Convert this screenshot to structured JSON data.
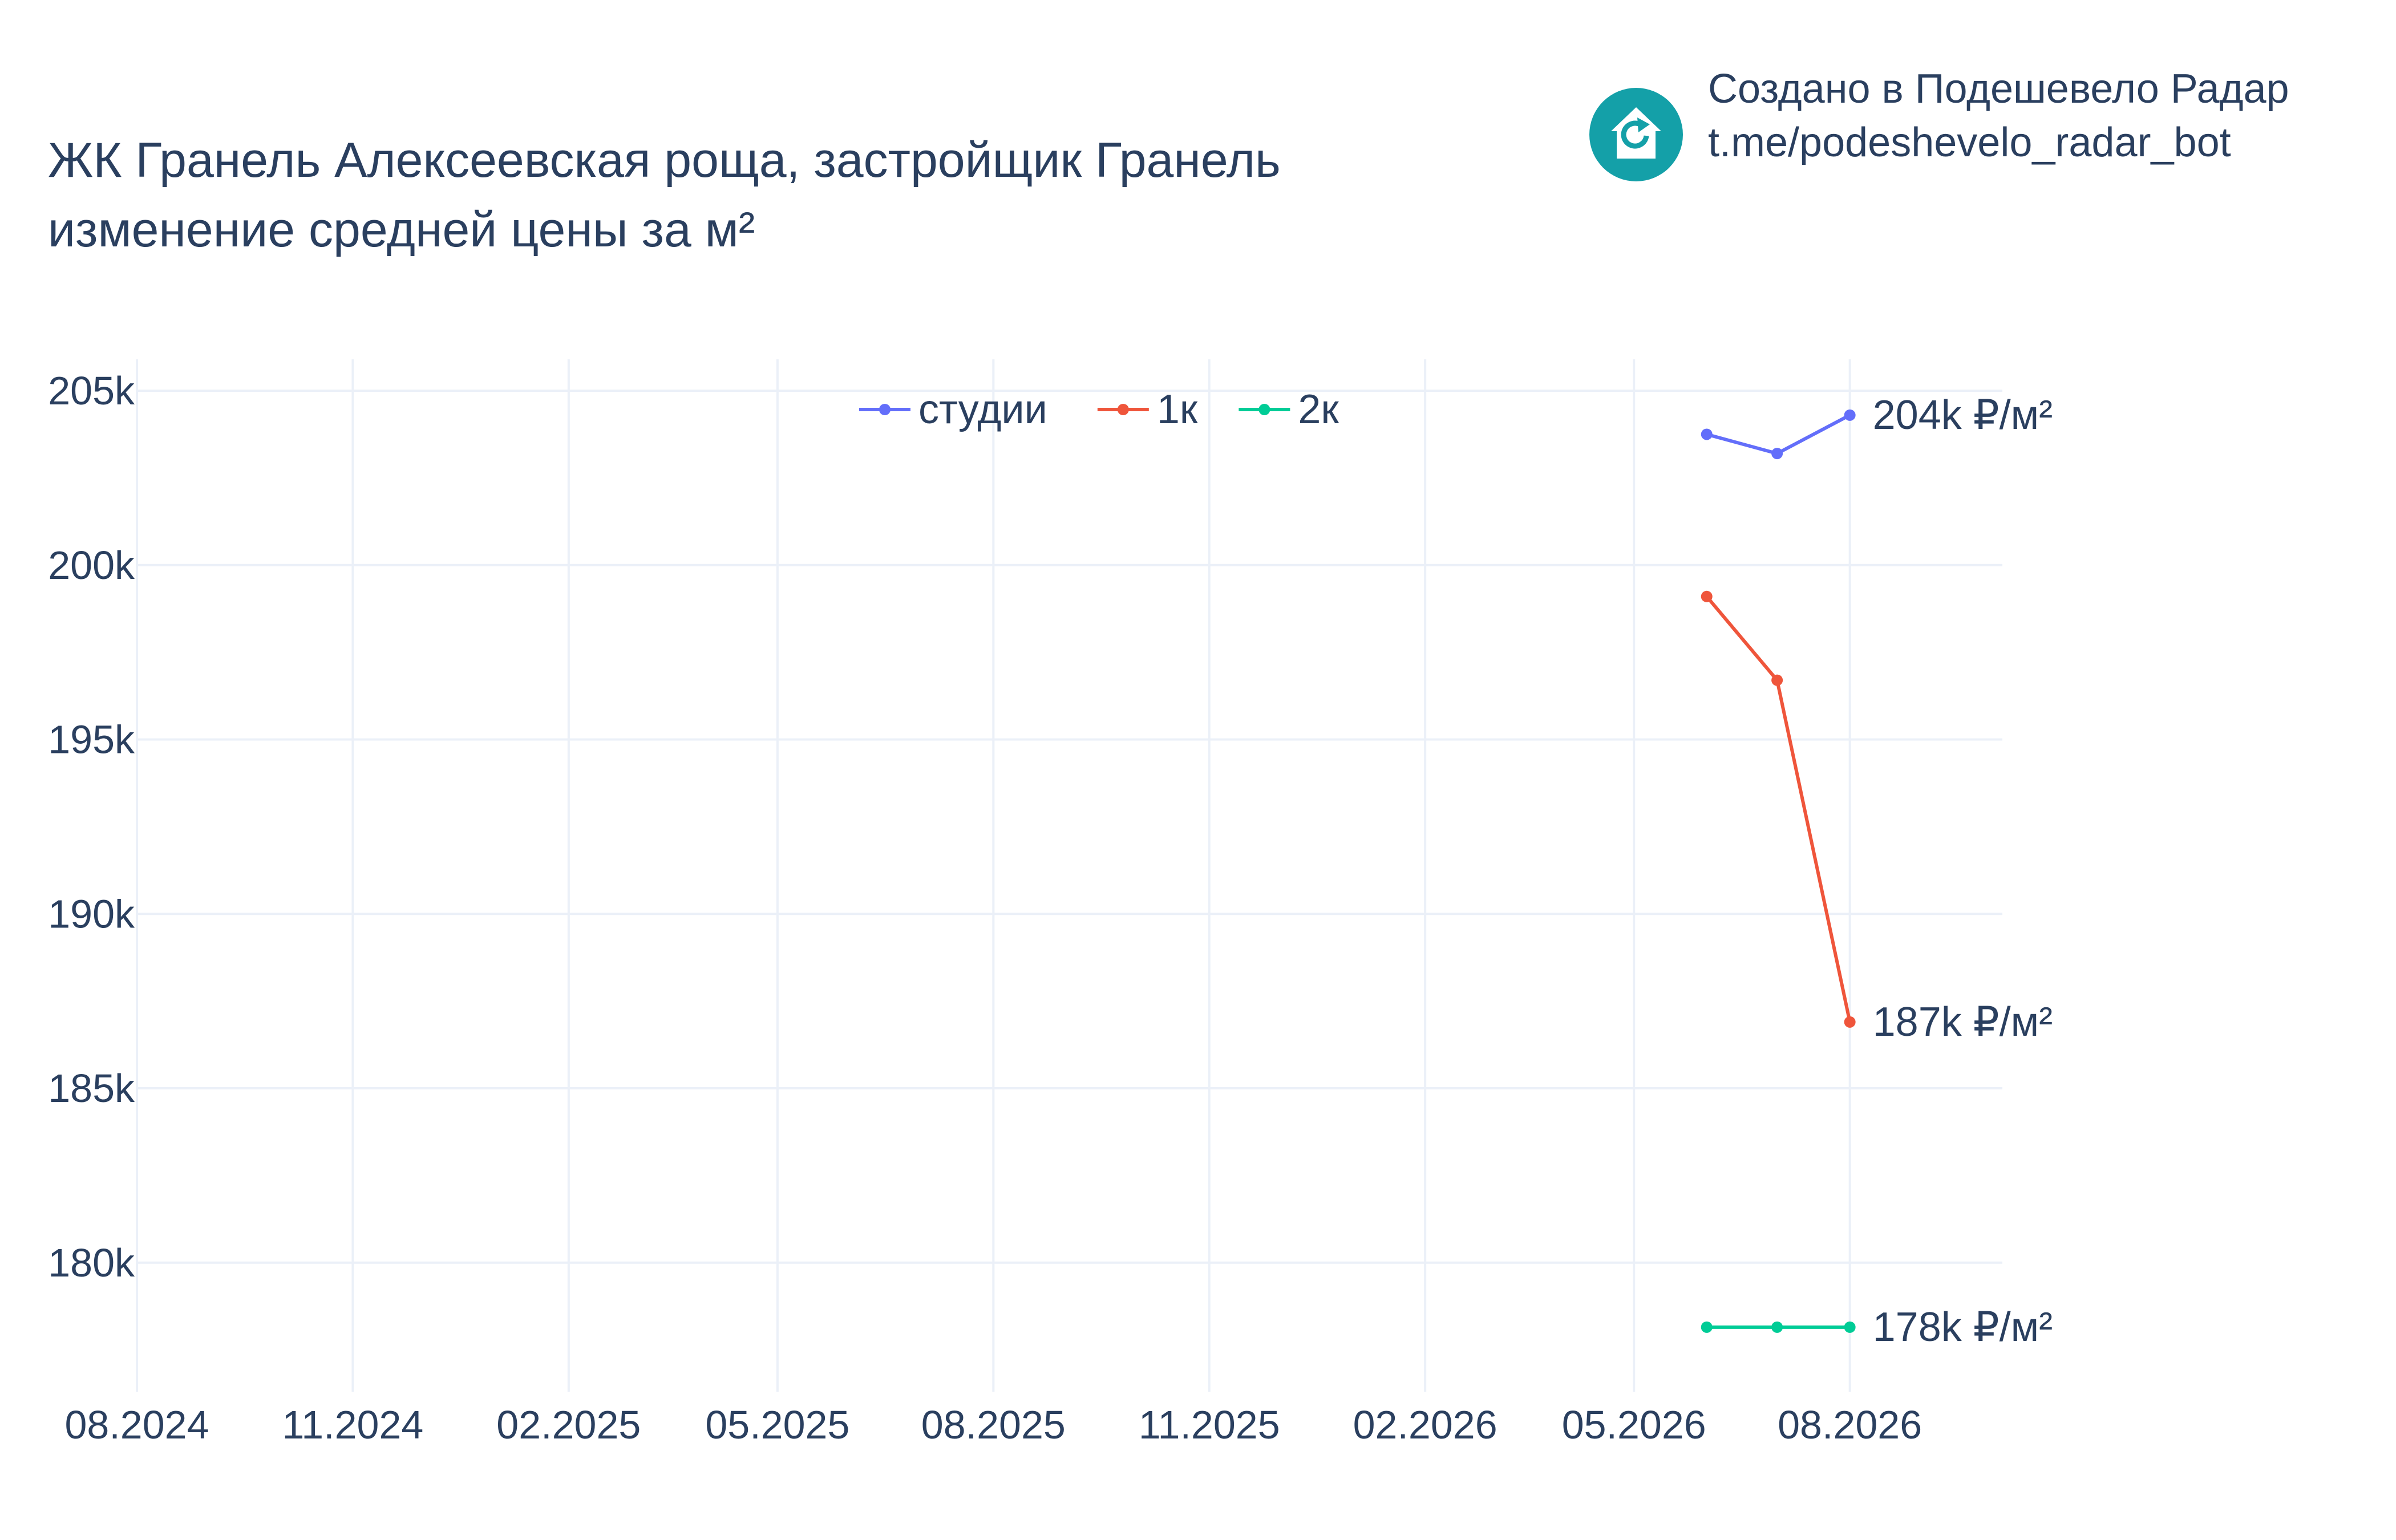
{
  "branding": {
    "line1": "Создано в Подешевело Радар",
    "line2": "t.me/podeshevelo_radar_bot",
    "icon": "house-refresh-icon",
    "icon_color": "#14a0a8"
  },
  "chart_data": {
    "type": "line",
    "title_line1": "ЖК Гранель Алексеевская роща, застройщик Гранель",
    "title_line2": "изменение средней цены за м²",
    "x_tick_labels": [
      "08.2024",
      "11.2024",
      "02.2025",
      "05.2025",
      "08.2025",
      "11.2025",
      "02.2026",
      "05.2026",
      "08.2026"
    ],
    "x_ticks": [
      "2024-08-01",
      "2024-11-01",
      "2025-02-01",
      "2025-05-01",
      "2025-08-01",
      "2025-11-01",
      "2026-02-01",
      "2026-05-01",
      "2026-08-01"
    ],
    "xlim": [
      "2024-08-01",
      "2026-10-05"
    ],
    "y_tick_labels": [
      "180k",
      "185k",
      "190k",
      "195k",
      "200k",
      "205k"
    ],
    "y_ticks": [
      180000,
      185000,
      190000,
      195000,
      200000,
      205000
    ],
    "ylim": [
      176300,
      205900
    ],
    "x": [
      "2026-06-01",
      "2026-07-01",
      "2026-08-01"
    ],
    "grid": true,
    "legend_position": "top-center",
    "series": [
      {
        "name": "студии",
        "color": "#636efa",
        "values": [
          203750,
          203200,
          204300
        ],
        "end_label": "204k ₽/м²"
      },
      {
        "name": "1к",
        "color": "#ef553b",
        "values": [
          199100,
          196700,
          186900
        ],
        "end_label": "187k ₽/м²"
      },
      {
        "name": "2к",
        "color": "#00cc96",
        "values": [
          178150,
          178150,
          178150
        ],
        "end_label": "178k ₽/м²"
      }
    ]
  }
}
